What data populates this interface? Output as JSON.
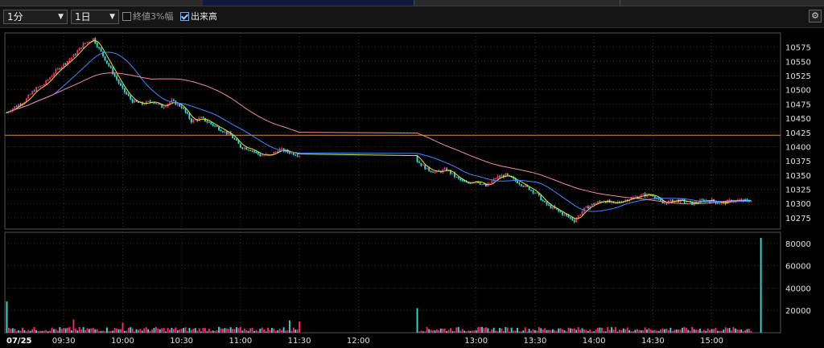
{
  "toolbar": {
    "interval": "1分",
    "period": "1日",
    "option1_label": "終値3%幅",
    "option1_checked": false,
    "option2_label": "出来高",
    "option2_checked": true,
    "settings_icon": "gear-icon"
  },
  "colors": {
    "background": "#000000",
    "up": "#ff2a6d",
    "down": "#33e0d8",
    "ma_short": "#e8e830",
    "ma_mid": "#3d8bff",
    "ma_long": "#f08aa8",
    "prev_close_line": "#d98c3a",
    "grid": "#3a3a3a"
  },
  "chart_data": [
    {
      "type": "candlestick",
      "title": "",
      "date_label": "07/25",
      "x_ticks": [
        "09:30",
        "10:00",
        "10:30",
        "11:00",
        "11:30",
        "12:00",
        "13:00",
        "13:30",
        "14:00",
        "14:30",
        "15:00"
      ],
      "y_ticks": [
        10275,
        10300,
        10325,
        10350,
        10375,
        10400,
        10425,
        10450,
        10475,
        10500,
        10525,
        10550,
        10575
      ],
      "ylim": [
        10255,
        10600
      ],
      "reference_line": 10420,
      "grid": true,
      "price_path": [
        [
          "09:01",
          10460
        ],
        [
          "09:05",
          10470
        ],
        [
          "09:10",
          10480
        ],
        [
          "09:15",
          10500
        ],
        [
          "09:20",
          10510
        ],
        [
          "09:25",
          10530
        ],
        [
          "09:30",
          10545
        ],
        [
          "09:35",
          10560
        ],
        [
          "09:40",
          10580
        ],
        [
          "09:45",
          10590
        ],
        [
          "09:50",
          10560
        ],
        [
          "09:55",
          10530
        ],
        [
          "10:00",
          10500
        ],
        [
          "10:05",
          10480
        ],
        [
          "10:10",
          10475
        ],
        [
          "10:15",
          10480
        ],
        [
          "10:20",
          10470
        ],
        [
          "10:25",
          10480
        ],
        [
          "10:30",
          10470
        ],
        [
          "10:35",
          10445
        ],
        [
          "10:40",
          10450
        ],
        [
          "10:45",
          10440
        ],
        [
          "10:50",
          10430
        ],
        [
          "10:55",
          10420
        ],
        [
          "11:00",
          10400
        ],
        [
          "11:05",
          10395
        ],
        [
          "11:10",
          10385
        ],
        [
          "11:15",
          10385
        ],
        [
          "11:20",
          10395
        ],
        [
          "11:25",
          10390
        ],
        [
          "11:30",
          10385
        ],
        [
          "12:30",
          10375
        ],
        [
          "12:35",
          10360
        ],
        [
          "12:40",
          10355
        ],
        [
          "12:45",
          10360
        ],
        [
          "12:50",
          10345
        ],
        [
          "12:55",
          10335
        ],
        [
          "13:00",
          10340
        ],
        [
          "13:05",
          10330
        ],
        [
          "13:10",
          10345
        ],
        [
          "13:15",
          10350
        ],
        [
          "13:20",
          10340
        ],
        [
          "13:25",
          10330
        ],
        [
          "13:30",
          10320
        ],
        [
          "13:35",
          10300
        ],
        [
          "13:40",
          10290
        ],
        [
          "13:45",
          10280
        ],
        [
          "13:50",
          10270
        ],
        [
          "13:55",
          10290
        ],
        [
          "14:00",
          10300
        ],
        [
          "14:05",
          10305
        ],
        [
          "14:10",
          10300
        ],
        [
          "14:15",
          10305
        ],
        [
          "14:20",
          10310
        ],
        [
          "14:25",
          10315
        ],
        [
          "14:30",
          10315
        ],
        [
          "14:35",
          10300
        ],
        [
          "14:40",
          10305
        ],
        [
          "14:45",
          10305
        ],
        [
          "14:50",
          10300
        ],
        [
          "14:55",
          10305
        ],
        [
          "15:00",
          10305
        ],
        [
          "15:05",
          10300
        ],
        [
          "15:10",
          10305
        ],
        [
          "15:15",
          10305
        ],
        [
          "15:20",
          10305
        ]
      ]
    },
    {
      "type": "bar",
      "title": "出来高",
      "y_ticks": [
        20000,
        40000,
        60000,
        80000
      ],
      "ylim": [
        0,
        90000
      ],
      "spikes": [
        [
          "09:01",
          28000
        ],
        [
          "09:35",
          12000
        ],
        [
          "10:00",
          9000
        ],
        [
          "11:25",
          11000
        ],
        [
          "11:30",
          10000
        ],
        [
          "12:30",
          22000
        ],
        [
          "15:25",
          85000
        ]
      ],
      "baseline_volume": 3500
    }
  ]
}
